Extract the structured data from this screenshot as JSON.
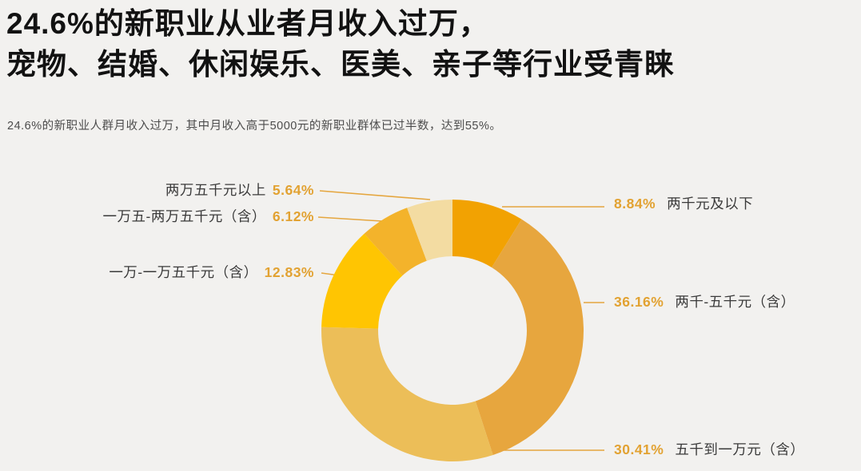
{
  "header": {
    "title_line1": "24.6%的新职业从业者月收入过万，",
    "title_line2": "宠物、结婚、休闲娱乐、医美、亲子等行业受青睐",
    "subtitle": "24.6%的新职业人群月收入过万，其中月收入高于5000元的新职业群体已过半数，达到55%。"
  },
  "chart_data": {
    "type": "pie",
    "subtype": "donut",
    "unit": "%",
    "start_angle_deg": -90,
    "direction": "clockwise",
    "legend_position": "callout-labels",
    "percent_color": "#e2a232",
    "leader_line_color": "#e5a63e",
    "background_color": "#f2f1ef",
    "segments": [
      {
        "label": "两千元及以下",
        "value": 8.84,
        "pct": "8.84%",
        "color": "#f2a202",
        "side": "right"
      },
      {
        "label": "两千-五千元（含）",
        "value": 36.16,
        "pct": "36.16%",
        "color": "#e7a63e",
        "side": "right"
      },
      {
        "label": "五千到一万元（含）",
        "value": 30.41,
        "pct": "30.41%",
        "color": "#ecbe58",
        "side": "right"
      },
      {
        "label": "一万-一万五千元（含）",
        "value": 12.83,
        "pct": "12.83%",
        "color": "#ffc502",
        "side": "left"
      },
      {
        "label": "一万五-两万五千元（含）",
        "value": 6.12,
        "pct": "6.12%",
        "color": "#f3b32b",
        "side": "left"
      },
      {
        "label": "两万五千元以上",
        "value": 5.64,
        "pct": "5.64%",
        "color": "#f3dca2",
        "side": "left"
      }
    ]
  }
}
